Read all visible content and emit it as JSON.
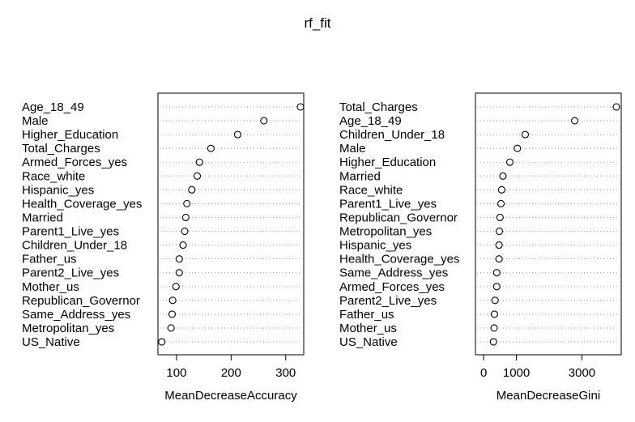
{
  "title": "rf_fit",
  "chart_data": [
    {
      "type": "scatter",
      "xlabel": "MeanDecreaseAccuracy",
      "xlim": [
        66,
        333
      ],
      "xticks": [
        100,
        200,
        300
      ],
      "grid": "dotted horizontal guides",
      "categories": [
        "Age_18_49",
        "Male",
        "Higher_Education",
        "Total_Charges",
        "Armed_Forces_yes",
        "Race_white",
        "Hispanic_yes",
        "Health_Coverage_yes",
        "Married",
        "Parent1_Live_yes",
        "Children_Under_18",
        "Father_us",
        "Parent2_Live_yes",
        "Mother_us",
        "Republican_Governor",
        "Same_Address_yes",
        "Metropolitan_yes",
        "US_Native"
      ],
      "values": [
        327,
        260,
        212,
        163,
        142,
        138,
        128,
        119,
        117,
        115,
        112,
        105,
        105,
        99,
        93,
        92,
        90,
        73
      ]
    },
    {
      "type": "scatter",
      "xlabel": "MeanDecreaseGini",
      "xlim": [
        -250,
        4200
      ],
      "xticks": [
        0,
        1000,
        3000
      ],
      "grid": "dotted horizontal guides",
      "categories": [
        "Total_Charges",
        "Age_18_49",
        "Children_Under_18",
        "Male",
        "Higher_Education",
        "Married",
        "Race_white",
        "Parent1_Live_yes",
        "Republican_Governor",
        "Metropolitan_yes",
        "Hispanic_yes",
        "Health_Coverage_yes",
        "Same_Address_yes",
        "Armed_Forces_yes",
        "Parent2_Live_yes",
        "Father_us",
        "Mother_us",
        "US_Native"
      ],
      "values": [
        4050,
        2780,
        1270,
        1030,
        800,
        590,
        550,
        530,
        500,
        480,
        470,
        470,
        400,
        400,
        350,
        330,
        320,
        300
      ]
    }
  ]
}
